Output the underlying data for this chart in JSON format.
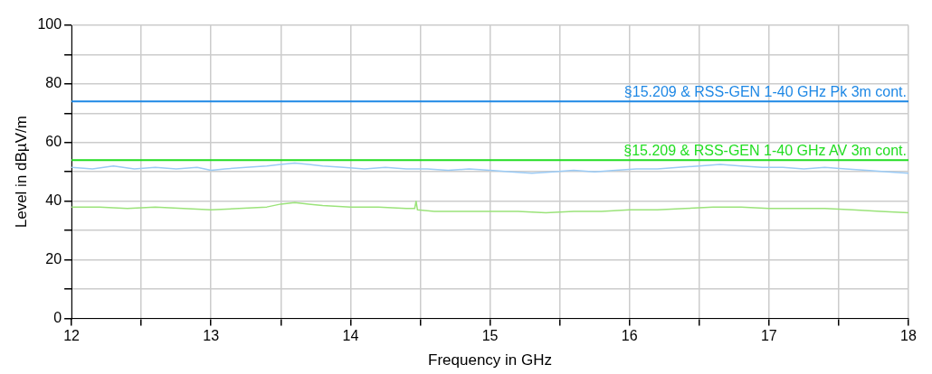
{
  "chart_data": {
    "type": "line",
    "xlabel": "Frequency in GHz",
    "ylabel": "Level in dBµV/m",
    "xlim": [
      12,
      18
    ],
    "ylim": [
      0,
      100
    ],
    "xticks": [
      12,
      {
        "value": 12.5,
        "label": null
      },
      13,
      {
        "value": 13.5,
        "label": null
      },
      14,
      {
        "value": 14.5,
        "label": null
      },
      15,
      {
        "value": 15.5,
        "label": null
      },
      16,
      {
        "value": 16.5,
        "label": null
      },
      17,
      {
        "value": 17.5,
        "label": null
      },
      18
    ],
    "yticks": [
      0,
      {
        "value": 10,
        "label": null
      },
      20,
      {
        "value": 30,
        "label": null
      },
      40,
      {
        "value": 50,
        "label": null
      },
      60,
      {
        "value": 70,
        "label": null
      },
      80,
      {
        "value": 90,
        "label": null
      },
      100
    ],
    "grid": true,
    "legend": false,
    "marker": "none",
    "line_style": "solid",
    "ref_lines": [
      {
        "axis": "y",
        "value": 74,
        "label": "§15.209 & RSS-GEN 1-40 GHz Pk 3m cont.",
        "color": "#1e88e5"
      },
      {
        "axis": "y",
        "value": 54,
        "label": "§15.209 & RSS-GEN 1-40 GHz AV 3m cont.",
        "color": "#22dd22"
      }
    ],
    "series": [
      {
        "color": "#9ccbf5",
        "x": [
          12,
          12.15,
          12.3,
          12.45,
          12.6,
          12.75,
          12.9,
          13.0,
          13.1,
          13.25,
          13.4,
          13.5,
          13.6,
          13.7,
          13.8,
          13.95,
          14.1,
          14.25,
          14.4,
          14.55,
          14.7,
          14.85,
          15.0,
          15.15,
          15.3,
          15.45,
          15.6,
          15.75,
          15.9,
          16.05,
          16.2,
          16.35,
          16.5,
          16.65,
          16.8,
          16.95,
          17.1,
          17.25,
          17.4,
          17.55,
          17.7,
          17.85,
          18
        ],
        "values": [
          51.5,
          51,
          52,
          51,
          51.5,
          51,
          51.5,
          50.5,
          51,
          51.5,
          52,
          52.5,
          53,
          52.5,
          52,
          51.5,
          51,
          51.5,
          51,
          51,
          50.5,
          51,
          50.5,
          50,
          49.5,
          50,
          50.5,
          50,
          50.5,
          51,
          51,
          51.5,
          52,
          52.5,
          52,
          51.5,
          51.5,
          51,
          51.5,
          51,
          50.5,
          50,
          49.5
        ]
      },
      {
        "color": "#9be37a",
        "x": [
          12,
          12.2,
          12.4,
          12.6,
          12.8,
          13.0,
          13.2,
          13.4,
          13.5,
          13.6,
          13.7,
          13.8,
          14.0,
          14.2,
          14.4,
          14.46,
          14.47,
          14.48,
          14.6,
          14.8,
          15.0,
          15.2,
          15.4,
          15.6,
          15.8,
          16.0,
          16.2,
          16.4,
          16.6,
          16.8,
          17.0,
          17.2,
          17.4,
          17.6,
          17.8,
          18
        ],
        "values": [
          38,
          38,
          37.5,
          38,
          37.5,
          37,
          37.5,
          38,
          39,
          39.5,
          39,
          38.5,
          38,
          38,
          37.5,
          37.5,
          40,
          37,
          36.5,
          36.5,
          36.5,
          36.5,
          36,
          36.5,
          36.5,
          37,
          37,
          37.5,
          38,
          38,
          37.5,
          37.5,
          37.5,
          37,
          36.5,
          36
        ]
      }
    ]
  }
}
